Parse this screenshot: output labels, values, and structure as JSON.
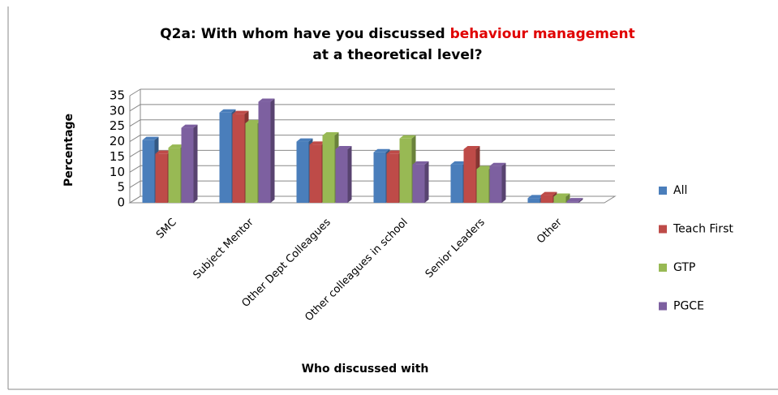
{
  "chart_data": {
    "type": "bar",
    "title": [
      "Q2a: With whom have you discussed",
      "behaviour management",
      "at a theoretical level?"
    ],
    "x_label": "Who discussed with",
    "y_label": "Percentage",
    "categories": [
      "SMC",
      "Subject Mentor",
      "Other Dept Colleagues",
      "Other colleagues in school",
      "Senior Leaders",
      "Other"
    ],
    "series": [
      {
        "name": "All",
        "color": "#4a7ebb",
        "values": [
          20.5,
          29.5,
          20,
          16.5,
          12.5,
          1.5
        ]
      },
      {
        "name": "Teach First",
        "color": "#be4b48",
        "values": [
          16,
          29,
          19,
          16,
          17.5,
          2.5
        ]
      },
      {
        "name": "GTP",
        "color": "#98b954",
        "values": [
          18,
          26,
          22,
          21,
          11,
          2
        ]
      },
      {
        "name": "PGCE",
        "color": "#7d60a0",
        "values": [
          24.5,
          33,
          17.5,
          12.5,
          12,
          0.5
        ]
      }
    ],
    "ylim": [
      0,
      35
    ],
    "yticks": [
      0,
      5,
      10,
      15,
      20,
      25,
      30,
      35
    ],
    "grid": true,
    "legend": "right"
  }
}
